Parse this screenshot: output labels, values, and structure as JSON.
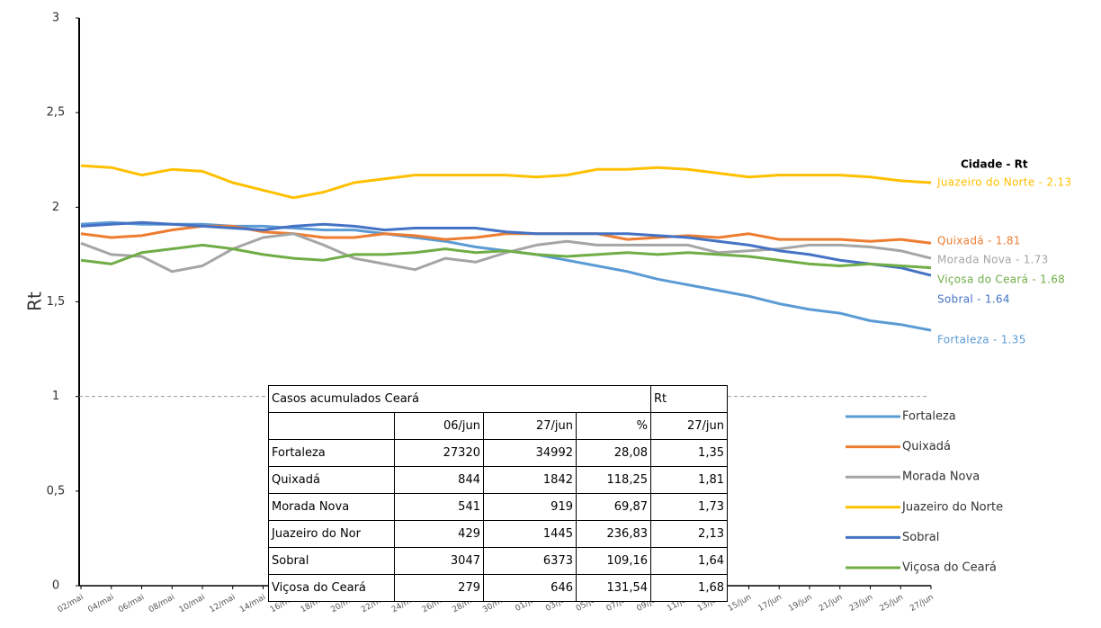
{
  "chart_data": {
    "type": "line",
    "y_label": "Rt",
    "legend_title": "Cidade - Rt",
    "categories": [
      "02/mai",
      "04/mai",
      "06/mai",
      "08/mai",
      "10/mai",
      "12/mai",
      "14/mai",
      "16/mai",
      "18/mai",
      "20/mai",
      "22/mai",
      "24/mai",
      "26/mai",
      "28/mai",
      "30/mai",
      "01/jun",
      "03/jun",
      "05/jun",
      "07/jun",
      "09/jun",
      "11/jun",
      "13/jun",
      "15/jun",
      "17/jun",
      "19/jun",
      "21/jun",
      "23/jun",
      "25/jun",
      "27/jun"
    ],
    "ylim": [
      0,
      3
    ],
    "yticks": [
      0,
      {
        "value": 0.5,
        "label": "0,5"
      },
      1,
      {
        "value": 1.5,
        "label": "1,5"
      },
      2,
      {
        "value": 2.5,
        "label": "2,5"
      },
      3
    ],
    "reference_line": 1,
    "legend": "right",
    "series": [
      {
        "name": "Fortaleza",
        "color": "#5b9bd5",
        "end_label": "Fortaleza - 1.35",
        "values": [
          1.91,
          1.92,
          1.91,
          1.91,
          1.91,
          1.9,
          1.9,
          1.89,
          1.88,
          1.88,
          1.86,
          1.84,
          1.82,
          1.79,
          1.77,
          1.75,
          1.72,
          1.69,
          1.66,
          1.62,
          1.59,
          1.56,
          1.53,
          1.49,
          1.46,
          1.44,
          1.4,
          1.38,
          1.35
        ]
      },
      {
        "name": "Quixadá",
        "color": "#ed7d31",
        "end_label": "Quixadá - 1.81",
        "values": [
          1.86,
          1.84,
          1.85,
          1.88,
          1.9,
          1.9,
          1.87,
          1.86,
          1.84,
          1.84,
          1.86,
          1.85,
          1.83,
          1.84,
          1.86,
          1.86,
          1.86,
          1.86,
          1.83,
          1.84,
          1.85,
          1.84,
          1.86,
          1.83,
          1.83,
          1.83,
          1.82,
          1.83,
          1.81
        ]
      },
      {
        "name": "Morada Nova",
        "color": "#a5a5a5",
        "end_label": "Morada Nova - 1.73",
        "values": [
          1.81,
          1.75,
          1.74,
          1.66,
          1.69,
          1.78,
          1.84,
          1.86,
          1.8,
          1.73,
          1.7,
          1.67,
          1.73,
          1.71,
          1.76,
          1.8,
          1.82,
          1.8,
          1.8,
          1.8,
          1.8,
          1.76,
          1.77,
          1.78,
          1.8,
          1.8,
          1.79,
          1.77,
          1.73
        ]
      },
      {
        "name": "Juazeiro do Norte",
        "color": "#ffc000",
        "end_label": "Juazeiro do Norte - 2.13",
        "values": [
          2.22,
          2.21,
          2.17,
          2.2,
          2.19,
          2.13,
          2.09,
          2.05,
          2.08,
          2.13,
          2.15,
          2.17,
          2.17,
          2.17,
          2.17,
          2.16,
          2.17,
          2.2,
          2.2,
          2.21,
          2.2,
          2.18,
          2.16,
          2.17,
          2.17,
          2.17,
          2.16,
          2.14,
          2.13
        ]
      },
      {
        "name": "Sobral",
        "color": "#4472c4",
        "end_label": "Sobral - 1.64",
        "values": [
          1.9,
          1.91,
          1.92,
          1.91,
          1.9,
          1.89,
          1.88,
          1.9,
          1.91,
          1.9,
          1.88,
          1.89,
          1.89,
          1.89,
          1.87,
          1.86,
          1.86,
          1.86,
          1.86,
          1.85,
          1.84,
          1.82,
          1.8,
          1.77,
          1.75,
          1.72,
          1.7,
          1.68,
          1.64
        ]
      },
      {
        "name": "Viçosa do Ceará",
        "color": "#70ad47",
        "end_label": "Viçosa do Ceará - 1.68",
        "values": [
          1.72,
          1.7,
          1.76,
          1.78,
          1.8,
          1.78,
          1.75,
          1.73,
          1.72,
          1.75,
          1.75,
          1.76,
          1.78,
          1.76,
          1.77,
          1.75,
          1.74,
          1.75,
          1.76,
          1.75,
          1.76,
          1.75,
          1.74,
          1.72,
          1.7,
          1.69,
          1.7,
          1.69,
          1.68
        ]
      }
    ]
  },
  "table": {
    "header": [
      "Casos acumulados Ceará",
      "Rt"
    ],
    "subheader": [
      "06/jun",
      "27/jun",
      "%",
      "27/jun"
    ],
    "rows": [
      [
        "Fortaleza",
        "27320",
        "34992",
        "28,08",
        "1,35"
      ],
      [
        "Quixadá",
        "844",
        "1842",
        "118,25",
        "1,81"
      ],
      [
        "Morada Nova",
        "541",
        "919",
        "69,87",
        "1,73"
      ],
      [
        "Juazeiro do Nor",
        "429",
        "1445",
        "236,83",
        "2,13"
      ],
      [
        "Sobral",
        "3047",
        "6373",
        "109,16",
        "1,64"
      ],
      [
        "Viçosa do Ceará",
        "279",
        "646",
        "131,54",
        "1,68"
      ]
    ]
  }
}
